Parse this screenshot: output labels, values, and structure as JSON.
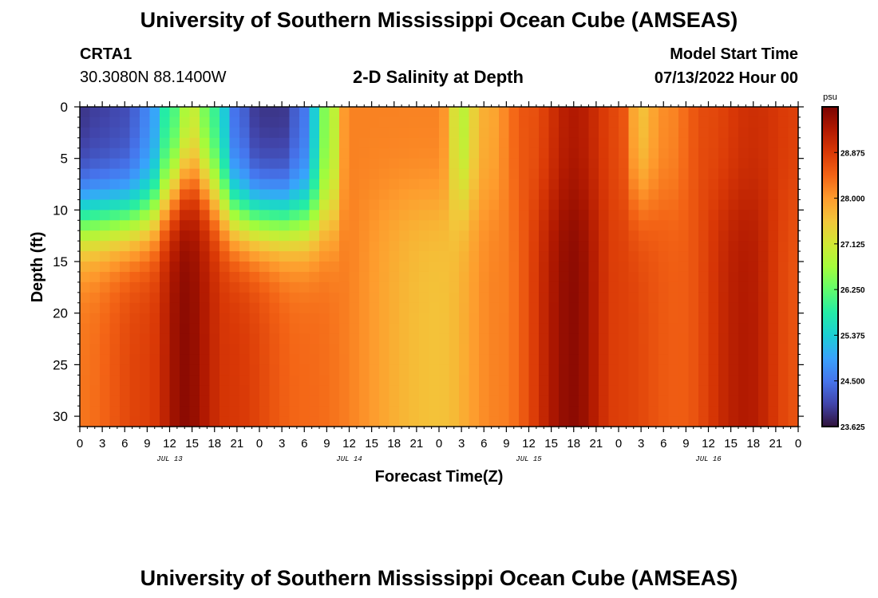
{
  "header": {
    "title": "University of Southern Mississippi Ocean Cube (AMSEAS)",
    "station": "CRTA1",
    "coords": "30.3080N  88.1400W",
    "subtitle": "2-D Salinity at Depth",
    "model_start_label": "Model Start Time",
    "model_start_value": "07/13/2022 Hour 00"
  },
  "footer": {
    "title": "University of Southern Mississippi Ocean Cube (AMSEAS)"
  },
  "chart_data": {
    "type": "heatmap",
    "title": "2-D Salinity at Depth",
    "xlabel": "Forecast Time(Z)",
    "ylabel": "Depth (ft)",
    "x_hours_range": [
      0,
      96
    ],
    "y_depth_range": [
      0,
      31
    ],
    "x_tick_labels": [
      "0",
      "3",
      "6",
      "9",
      "12",
      "15",
      "18",
      "21",
      "0",
      "3",
      "6",
      "9",
      "12",
      "15",
      "18",
      "21",
      "0",
      "3",
      "6",
      "9",
      "12",
      "15",
      "18",
      "21",
      "0",
      "3",
      "6",
      "9",
      "12",
      "15",
      "18",
      "21",
      "0"
    ],
    "y_tick_labels": [
      "0",
      "5",
      "10",
      "15",
      "20",
      "25",
      "30"
    ],
    "y_tick_values": [
      0,
      5,
      10,
      15,
      20,
      25,
      30
    ],
    "date_labels": [
      {
        "hour": 12,
        "label": "JUL 13"
      },
      {
        "hour": 36,
        "label": "JUL 14"
      },
      {
        "hour": 60,
        "label": "JUL 15"
      },
      {
        "hour": 84,
        "label": "JUL 16"
      }
    ],
    "colorbar": {
      "unit": "psu",
      "min": 23.625,
      "max": 29.75,
      "tick_labels": [
        "28.875",
        "28.000",
        "27.125",
        "26.250",
        "25.375",
        "24.500",
        "23.625"
      ],
      "tick_values": [
        28.875,
        28.0,
        27.125,
        26.25,
        25.375,
        24.5,
        23.625
      ],
      "colors": [
        "#30123b",
        "#4145ab",
        "#4675ed",
        "#39a2fc",
        "#1bcfd4",
        "#24eca6",
        "#61fc6c",
        "#a4fc3b",
        "#d1e834",
        "#f3c63a",
        "#fe9b2d",
        "#f36315",
        "#d93806",
        "#b11901",
        "#7a0402"
      ]
    },
    "salinity_surface_by_hour": [
      {
        "hour": 0,
        "value": 23.9
      },
      {
        "hour": 3,
        "value": 24.0
      },
      {
        "hour": 6,
        "value": 24.1
      },
      {
        "hour": 9,
        "value": 24.6
      },
      {
        "hour": 12,
        "value": 25.9
      },
      {
        "hour": 15,
        "value": 26.9
      },
      {
        "hour": 18,
        "value": 25.9
      },
      {
        "hour": 21,
        "value": 24.4
      },
      {
        "hour": 24,
        "value": 23.9
      },
      {
        "hour": 27,
        "value": 23.9
      },
      {
        "hour": 30,
        "value": 24.5
      },
      {
        "hour": 33,
        "value": 26.5
      },
      {
        "hour": 36,
        "value": 28.2
      },
      {
        "hour": 48,
        "value": 28.2
      },
      {
        "hour": 51,
        "value": 26.9
      },
      {
        "hour": 54,
        "value": 27.8
      },
      {
        "hour": 60,
        "value": 28.6
      },
      {
        "hour": 66,
        "value": 29.3
      },
      {
        "hour": 72,
        "value": 28.7
      },
      {
        "hour": 75,
        "value": 27.6
      },
      {
        "hour": 78,
        "value": 28.1
      },
      {
        "hour": 84,
        "value": 28.7
      },
      {
        "hour": 90,
        "value": 29.0
      },
      {
        "hour": 96,
        "value": 28.8
      }
    ],
    "salinity_bottom_by_hour": [
      {
        "hour": 0,
        "value": 28.3
      },
      {
        "hour": 9,
        "value": 28.8
      },
      {
        "hour": 14,
        "value": 29.6
      },
      {
        "hour": 20,
        "value": 28.9
      },
      {
        "hour": 30,
        "value": 28.4
      },
      {
        "hour": 48,
        "value": 27.6
      },
      {
        "hour": 56,
        "value": 28.2
      },
      {
        "hour": 66,
        "value": 29.6
      },
      {
        "hour": 72,
        "value": 28.8
      },
      {
        "hour": 80,
        "value": 28.5
      },
      {
        "hour": 89,
        "value": 29.3
      },
      {
        "hour": 96,
        "value": 28.6
      }
    ]
  }
}
